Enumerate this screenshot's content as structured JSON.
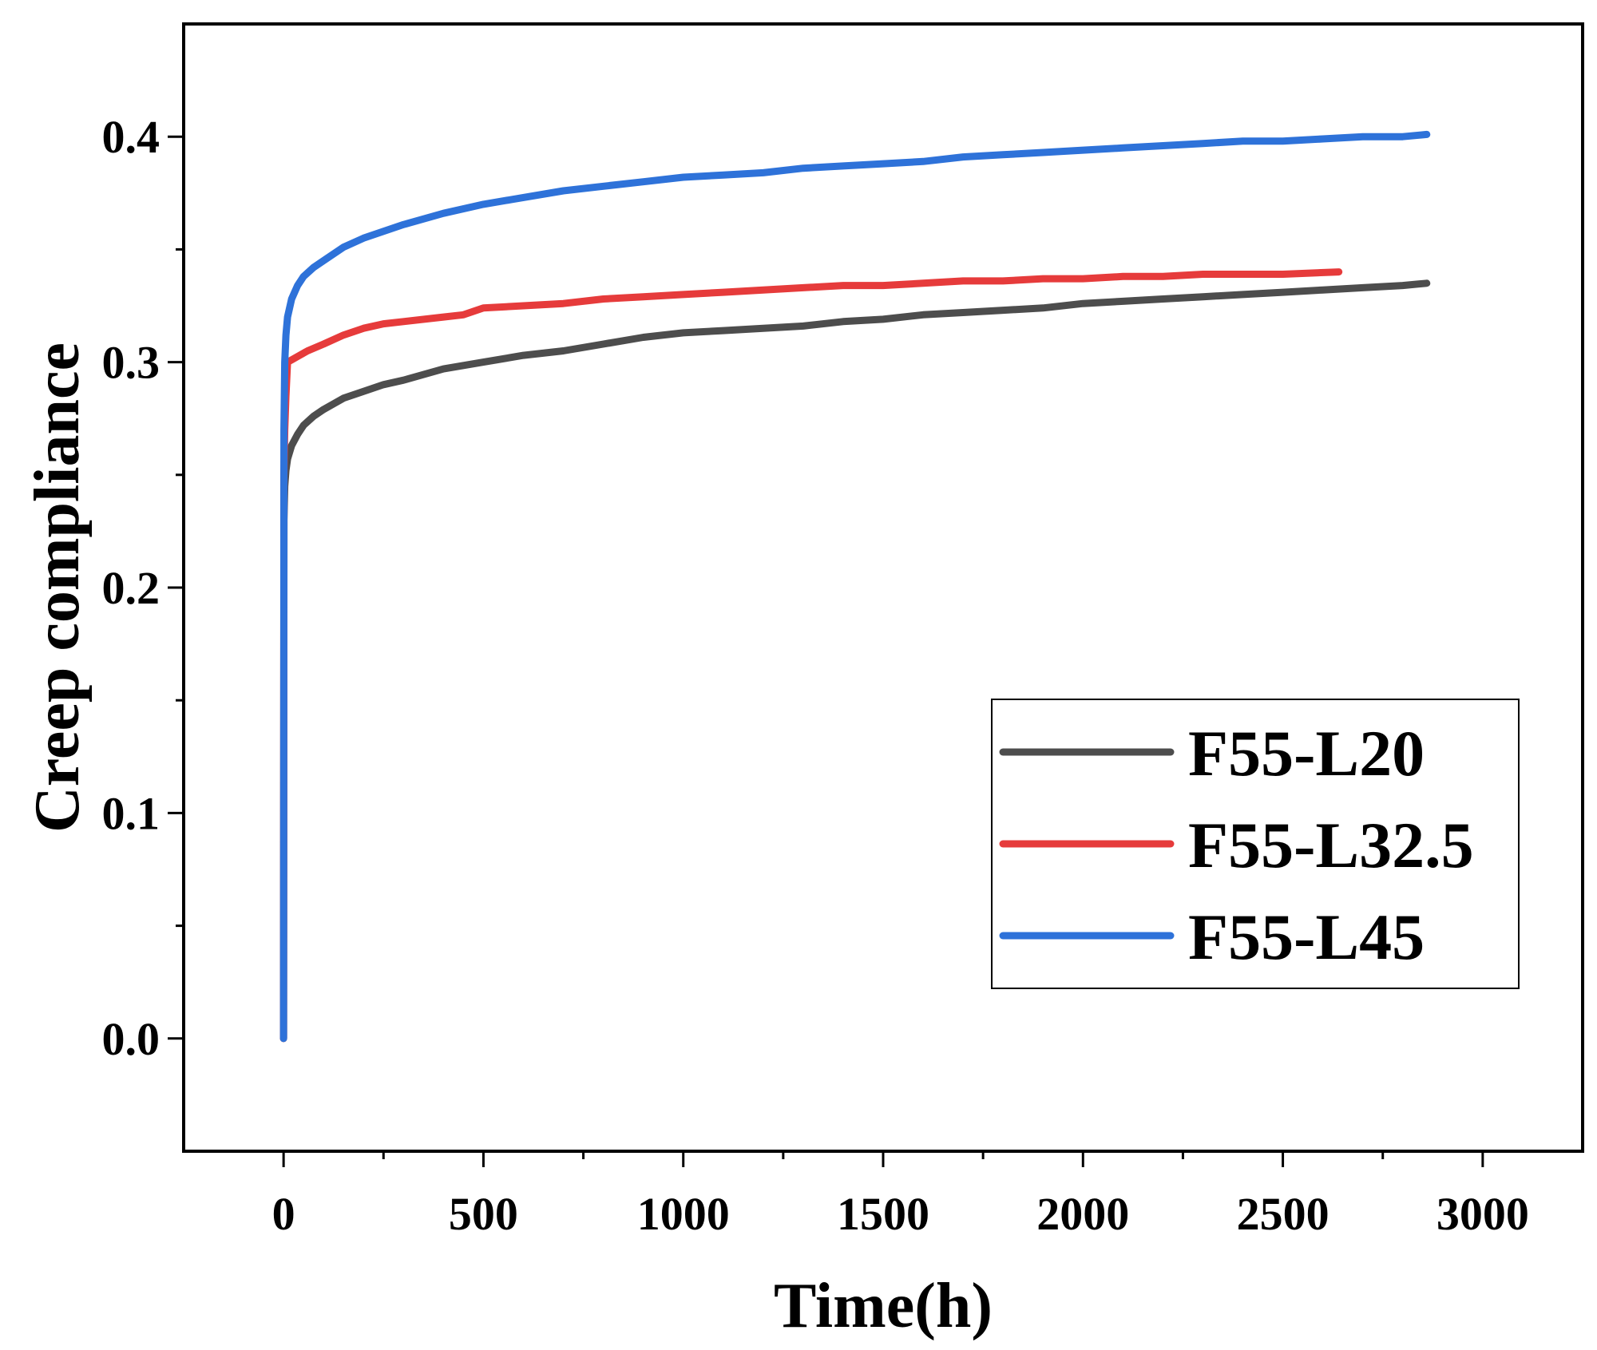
{
  "chart_data": {
    "type": "line",
    "title": "",
    "xlabel": "Time(h)",
    "ylabel": "Creep compliance",
    "xlim": [
      -250,
      3250
    ],
    "ylim": [
      -0.05,
      0.45
    ],
    "xticks": [
      0,
      500,
      1000,
      1500,
      2000,
      2500,
      3000
    ],
    "xtick_labels": [
      "0",
      "500",
      "1000",
      "1500",
      "2000",
      "2500",
      "3000"
    ],
    "yticks": [
      0.0,
      0.1,
      0.2,
      0.3,
      0.4
    ],
    "ytick_labels": [
      "0.0",
      "0.1",
      "0.2",
      "0.3",
      "0.4"
    ],
    "grid": false,
    "legend_position": "bottom-right",
    "series": [
      {
        "name": "F55-L20",
        "color": "#4d4d4d",
        "x": [
          0,
          1,
          3,
          6,
          10,
          20,
          35,
          50,
          75,
          100,
          150,
          200,
          250,
          300,
          400,
          500,
          600,
          700,
          800,
          900,
          1000,
          1100,
          1200,
          1300,
          1400,
          1500,
          1600,
          1700,
          1800,
          1900,
          2000,
          2100,
          2200,
          2300,
          2400,
          2500,
          2600,
          2700,
          2800,
          2860
        ],
        "y": [
          0.0,
          0.23,
          0.245,
          0.252,
          0.257,
          0.263,
          0.268,
          0.272,
          0.276,
          0.279,
          0.284,
          0.287,
          0.29,
          0.292,
          0.297,
          0.3,
          0.303,
          0.305,
          0.308,
          0.311,
          0.313,
          0.314,
          0.315,
          0.316,
          0.318,
          0.319,
          0.321,
          0.322,
          0.323,
          0.324,
          0.326,
          0.327,
          0.328,
          0.329,
          0.33,
          0.331,
          0.332,
          0.333,
          0.334,
          0.335
        ]
      },
      {
        "name": "F55-L32.5",
        "color": "#e63b3b",
        "x": [
          0,
          1,
          3,
          6,
          10,
          20,
          40,
          60,
          100,
          150,
          200,
          250,
          300,
          400,
          450,
          500,
          600,
          700,
          800,
          900,
          1000,
          1100,
          1200,
          1300,
          1400,
          1500,
          1600,
          1700,
          1800,
          1900,
          2000,
          2100,
          2200,
          2300,
          2400,
          2500,
          2640
        ],
        "y": [
          0.0,
          0.25,
          0.27,
          0.285,
          0.3,
          0.301,
          0.303,
          0.305,
          0.308,
          0.312,
          0.315,
          0.317,
          0.318,
          0.32,
          0.321,
          0.324,
          0.325,
          0.326,
          0.328,
          0.329,
          0.33,
          0.331,
          0.332,
          0.333,
          0.334,
          0.334,
          0.335,
          0.336,
          0.336,
          0.337,
          0.337,
          0.338,
          0.338,
          0.339,
          0.339,
          0.339,
          0.34
        ]
      },
      {
        "name": "F55-L45",
        "color": "#2e72d9",
        "x": [
          0,
          1,
          3,
          6,
          10,
          20,
          35,
          50,
          75,
          100,
          150,
          200,
          250,
          300,
          400,
          500,
          600,
          700,
          800,
          900,
          1000,
          1100,
          1200,
          1300,
          1400,
          1500,
          1600,
          1700,
          1800,
          1900,
          2000,
          2100,
          2200,
          2300,
          2400,
          2500,
          2600,
          2700,
          2800,
          2860
        ],
        "y": [
          0.0,
          0.27,
          0.3,
          0.312,
          0.32,
          0.328,
          0.334,
          0.338,
          0.342,
          0.345,
          0.351,
          0.355,
          0.358,
          0.361,
          0.366,
          0.37,
          0.373,
          0.376,
          0.378,
          0.38,
          0.382,
          0.383,
          0.384,
          0.386,
          0.387,
          0.388,
          0.389,
          0.391,
          0.392,
          0.393,
          0.394,
          0.395,
          0.396,
          0.397,
          0.398,
          0.398,
          0.399,
          0.4,
          0.4,
          0.401
        ]
      }
    ]
  }
}
